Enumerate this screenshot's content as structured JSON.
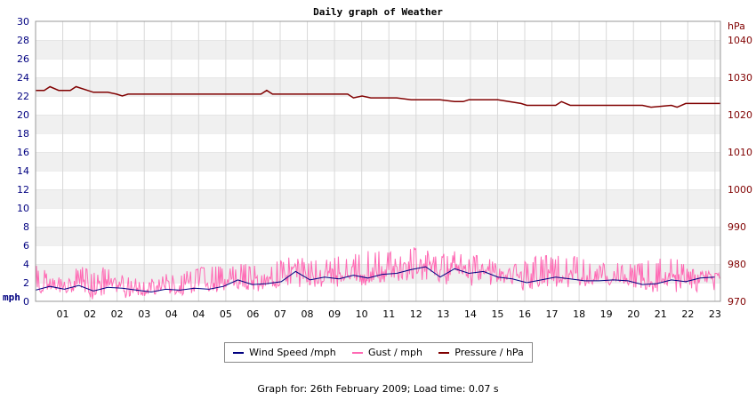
{
  "chart_data": {
    "type": "line",
    "title": "Daily graph of Weather",
    "x_ticks": [
      "01",
      "02",
      "02",
      "03",
      "04",
      "04",
      "05",
      "06",
      "07",
      "08",
      "09",
      "10",
      "11",
      "12",
      "13",
      "14",
      "15",
      "16",
      "17",
      "18",
      "19",
      "20",
      "21",
      "22",
      "23"
    ],
    "y_left": {
      "unit": "mph",
      "min": 0,
      "max": 30,
      "ticks": [
        0,
        2,
        4,
        6,
        8,
        10,
        12,
        14,
        16,
        18,
        20,
        22,
        24,
        26,
        28,
        30
      ]
    },
    "y_right": {
      "unit": "hPa",
      "min": 970,
      "max": 1045,
      "ticks": [
        970,
        980,
        990,
        1000,
        1010,
        1020,
        1030,
        1040
      ]
    },
    "x_range_hours": [
      0,
      23.7
    ],
    "grid": true,
    "series": [
      {
        "name": "Wind Speed /mph",
        "axis": "left",
        "color": "#000080",
        "x": [
          0,
          0.5,
          1,
          1.5,
          2,
          2.5,
          3,
          3.5,
          4,
          4.5,
          5,
          5.5,
          6,
          6.5,
          7,
          7.5,
          8,
          8.5,
          9,
          9.5,
          10,
          10.5,
          11,
          11.5,
          12,
          12.5,
          13,
          13.5,
          14,
          14.5,
          15,
          15.5,
          16,
          16.5,
          17,
          17.5,
          18,
          18.5,
          19,
          19.5,
          20,
          20.5,
          21,
          21.5,
          22,
          22.5,
          23,
          23.5
        ],
        "values": [
          1.2,
          1.6,
          1.3,
          1.7,
          1.1,
          1.5,
          1.4,
          1.2,
          1.0,
          1.3,
          1.2,
          1.4,
          1.3,
          1.6,
          2.3,
          1.8,
          1.9,
          2.1,
          3.2,
          2.3,
          2.6,
          2.4,
          2.8,
          2.5,
          2.9,
          3.0,
          3.4,
          3.7,
          2.6,
          3.5,
          3.0,
          3.2,
          2.6,
          2.4,
          2.0,
          2.3,
          2.6,
          2.4,
          2.2,
          2.2,
          2.3,
          2.2,
          1.8,
          1.9,
          2.3,
          2.1,
          2.5,
          2.6
        ]
      },
      {
        "name": "Gust / mph",
        "axis": "left",
        "color": "#ff69b4",
        "x": [
          0,
          0.5,
          1,
          1.5,
          2,
          2.5,
          3,
          3.5,
          4,
          4.5,
          5,
          5.5,
          6,
          6.5,
          7,
          7.5,
          8,
          8.5,
          9,
          9.5,
          10,
          10.5,
          11,
          11.5,
          12,
          12.5,
          13,
          13.5,
          14,
          14.5,
          15,
          15.5,
          16,
          16.5,
          17,
          17.5,
          18,
          18.5,
          19,
          19.5,
          20,
          20.5,
          21,
          21.5,
          22,
          22.5,
          23,
          23.5
        ],
        "values_high": [
          4,
          3,
          2.5,
          4,
          3,
          4,
          3,
          2.5,
          2.5,
          3,
          3,
          3.5,
          4,
          4,
          4,
          4,
          4,
          4.5,
          5,
          4.5,
          4.5,
          5,
          5,
          5.5,
          6,
          5,
          6,
          5.5,
          5,
          5.5,
          5,
          5,
          4,
          4,
          4.5,
          5,
          5,
          5,
          4.5,
          4,
          4.5,
          4,
          4.5,
          4.5,
          5,
          4,
          3.5,
          3
        ],
        "values_low": [
          0.5,
          1,
          0.8,
          1,
          0,
          0.8,
          0,
          0.5,
          0.5,
          1,
          0.8,
          1,
          1,
          1,
          1,
          1,
          1,
          1.5,
          1.5,
          1.5,
          1.5,
          1.5,
          2,
          1.5,
          2,
          2,
          2,
          2,
          1.5,
          2,
          1.5,
          2,
          1.5,
          1.5,
          1,
          1.5,
          1.5,
          1.5,
          1.5,
          1.5,
          1.5,
          1.5,
          1,
          1,
          1,
          1,
          1,
          1
        ]
      },
      {
        "name": "Pressure / hPa",
        "axis": "right",
        "color": "#800000",
        "x": [
          0,
          0.3,
          0.5,
          0.8,
          1,
          1.2,
          1.4,
          1.8,
          2,
          2.2,
          2.5,
          2.8,
          3,
          3.2,
          4,
          5,
          6,
          7,
          7.8,
          8,
          8.2,
          9,
          10,
          10.8,
          11,
          11.3,
          11.6,
          12,
          12.5,
          13,
          14,
          14.5,
          14.8,
          15,
          16,
          16.8,
          17,
          18,
          18.2,
          18.5,
          19,
          20,
          21,
          21.3,
          22,
          22.2,
          22.5,
          23,
          23.7
        ],
        "values": [
          1026.5,
          1026.5,
          1027.5,
          1026.5,
          1026.5,
          1026.5,
          1027.5,
          1026.5,
          1026,
          1026,
          1026,
          1025.5,
          1025,
          1025.5,
          1025.5,
          1025.5,
          1025.5,
          1025.5,
          1025.5,
          1026.5,
          1025.5,
          1025.5,
          1025.5,
          1025.5,
          1024.5,
          1025,
          1024.5,
          1024.5,
          1024.5,
          1024,
          1024,
          1023.5,
          1023.5,
          1024,
          1024,
          1023,
          1022.5,
          1022.5,
          1023.5,
          1022.5,
          1022.5,
          1022.5,
          1022.5,
          1022,
          1022.5,
          1022,
          1023,
          1023,
          1023
        ]
      }
    ]
  },
  "legend": {
    "items": [
      {
        "label": "Wind Speed /mph",
        "color": "#000080"
      },
      {
        "label": "Gust / mph",
        "color": "#ff69b4"
      },
      {
        "label": "Pressure / hPa",
        "color": "#800000"
      }
    ]
  },
  "footer": {
    "text": "Graph for: 26th February 2009; Load time: 0.07 s"
  }
}
